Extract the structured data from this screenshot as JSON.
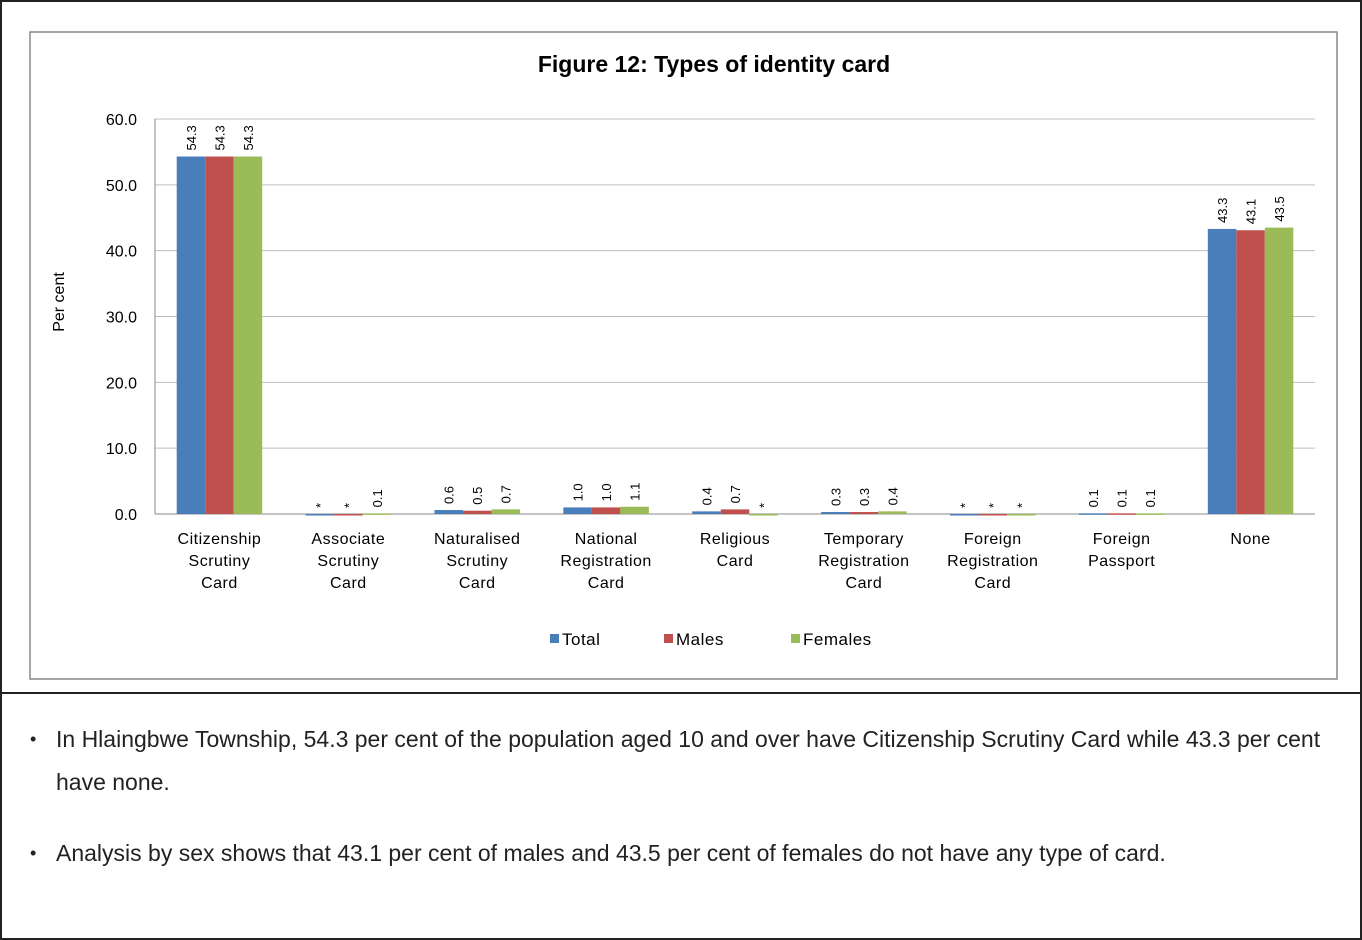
{
  "chart_data": {
    "type": "bar",
    "title": "Figure 12:  Types of identity card",
    "ylabel": "Per cent",
    "categories": [
      "Citizenship Scrutiny Card",
      "Associate Scrutiny Card",
      "Naturalised Scrutiny Card",
      "National Registration Card",
      "Religious Card",
      "Temporary Registration Card",
      "Foreign Registration Card",
      "Foreign Passport",
      "None"
    ],
    "series": [
      {
        "name": "Total",
        "color": "#4a7ebb",
        "values": [
          54.3,
          0,
          0.6,
          1.0,
          0.4,
          0.3,
          0,
          0.1,
          43.3
        ],
        "value_labels": [
          "54.3",
          "*",
          "0.6",
          "1.0",
          "0.4",
          "0.3",
          "*",
          "0.1",
          "43.3"
        ]
      },
      {
        "name": "Males",
        "color": "#c0504d",
        "values": [
          54.3,
          0,
          0.5,
          1.0,
          0.7,
          0.3,
          0,
          0.1,
          43.1
        ],
        "value_labels": [
          "54.3",
          "*",
          "0.5",
          "1.0",
          "0.7",
          "0.3",
          "*",
          "0.1",
          "43.1"
        ]
      },
      {
        "name": "Females",
        "color": "#9bbb59",
        "values": [
          54.3,
          0.1,
          0.7,
          1.1,
          0,
          0.4,
          0,
          0.1,
          43.5
        ],
        "value_labels": [
          "54.3",
          "0.1",
          "0.7",
          "1.1",
          "*",
          "0.4",
          "*",
          "0.1",
          "43.5"
        ]
      }
    ],
    "ylim": [
      0,
      60
    ],
    "yticks": [
      {
        "value": 0,
        "label": "0.0"
      },
      {
        "value": 10,
        "label": "10.0"
      },
      {
        "value": 20,
        "label": "20.0"
      },
      {
        "value": 30,
        "label": "30.0"
      },
      {
        "value": 40,
        "label": "40.0"
      },
      {
        "value": 50,
        "label": "50.0"
      },
      {
        "value": 60,
        "label": "60.0"
      }
    ],
    "grid": true,
    "legend": "bottom"
  },
  "bullets": [
    "In Hlaingbwe Township, 54.3 per cent of the population aged 10 and over have Citizenship Scrutiny Card while 43.3 per cent have none.",
    "Analysis by sex shows that 43.1 per cent of males and 43.5 per cent of females do not have any type of card."
  ]
}
